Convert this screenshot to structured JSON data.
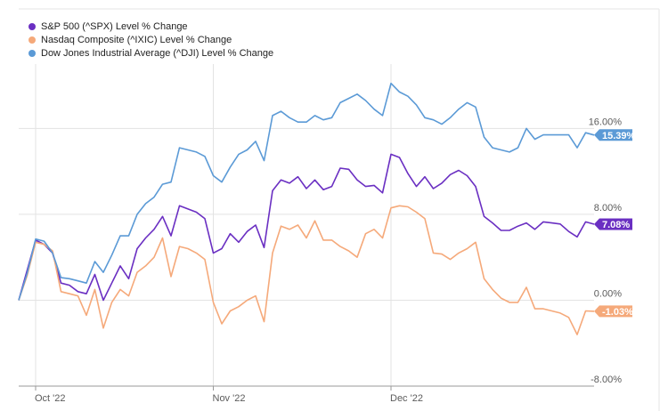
{
  "chart_data": {
    "type": "line",
    "ylim": [
      -8,
      22
    ],
    "y_ticks": [
      "16.00%",
      "8.00%",
      "0.00%",
      "-8.00%"
    ],
    "y_tick_values": [
      16,
      8,
      0,
      -8
    ],
    "x_ticks": [
      "Oct '22",
      "Nov '22",
      "Dec '22"
    ],
    "x_tick_positions": [
      2,
      23,
      44
    ],
    "grid": true,
    "legend_position": "top-left",
    "series": [
      {
        "name": "S&P 500 (^SPX) Level % Change",
        "color": "#6a2fc2",
        "end_label": "7.08%",
        "values": [
          0,
          2.8,
          5.6,
          5.2,
          4.4,
          1.6,
          1.4,
          0.8,
          0.6,
          2.4,
          0,
          1.6,
          3.2,
          2.0,
          4.8,
          5.8,
          6.6,
          7.8,
          6.0,
          8.8,
          8.5,
          8.2,
          7.6,
          4.4,
          4.8,
          6.2,
          5.4,
          6.4,
          7.0,
          4.9,
          10.2,
          11.2,
          10.9,
          11.5,
          10.4,
          11.2,
          10.3,
          10.6,
          12.3,
          12.2,
          11.2,
          10.6,
          10.7,
          10.0,
          13.6,
          13.3,
          11.8,
          10.6,
          11.5,
          10.4,
          10.9,
          11.7,
          12.1,
          11.6,
          10.6,
          7.8,
          7.2,
          6.5,
          6.5,
          6.9,
          7.2,
          6.6,
          7.3,
          7.2,
          7.1,
          6.4,
          5.9,
          7.3,
          7.08
        ]
      },
      {
        "name": "Nasdaq Composite (^IXIC) Level % Change",
        "color": "#f5a97a",
        "end_label": "-1.03%",
        "values": [
          0,
          2.3,
          5.4,
          5.2,
          4.6,
          0.8,
          0.6,
          0.4,
          -1.4,
          1.0,
          -2.6,
          -0.2,
          1.0,
          0.4,
          2.6,
          3.2,
          4.0,
          5.8,
          2.2,
          5.0,
          4.8,
          4.4,
          3.8,
          -0.2,
          -2.2,
          -1.0,
          -0.6,
          0,
          0.4,
          -2.0,
          4.4,
          6.9,
          6.6,
          7.0,
          5.8,
          7.4,
          5.6,
          5.6,
          5.0,
          4.6,
          4.0,
          6.2,
          6.6,
          5.8,
          8.6,
          8.8,
          8.7,
          8.2,
          7.6,
          4.4,
          4.3,
          3.8,
          4.4,
          4.8,
          5.4,
          2.0,
          1.0,
          0.2,
          -0.2,
          -0.2,
          1.2,
          -0.8,
          -0.8,
          -1.0,
          -1.2,
          -1.6,
          -3.2,
          -1.0,
          -1.03
        ]
      },
      {
        "name": "Dow Jones Industrial Average (^DJI) Level % Change",
        "color": "#5b9ad6",
        "end_label": "15.39%",
        "values": [
          0,
          2.5,
          5.7,
          5.5,
          4.4,
          2.1,
          2.0,
          1.8,
          1.6,
          3.6,
          2.6,
          4.2,
          6.0,
          6.0,
          8.0,
          9.0,
          9.6,
          10.8,
          11.0,
          14.2,
          14.0,
          13.8,
          13.4,
          11.6,
          11.0,
          12.4,
          13.6,
          14.0,
          14.8,
          13.0,
          17.2,
          17.6,
          17.0,
          16.6,
          16.6,
          17.2,
          16.8,
          17.0,
          18.4,
          18.8,
          19.2,
          18.6,
          17.8,
          17.2,
          20.2,
          19.4,
          19.0,
          18.2,
          17.0,
          16.8,
          16.4,
          17.0,
          17.8,
          18.4,
          18.0,
          15.2,
          14.2,
          14.0,
          13.8,
          14.2,
          16.0,
          15.0,
          15.4,
          15.4,
          15.4,
          15.4,
          14.2,
          15.6,
          15.39
        ]
      }
    ]
  }
}
